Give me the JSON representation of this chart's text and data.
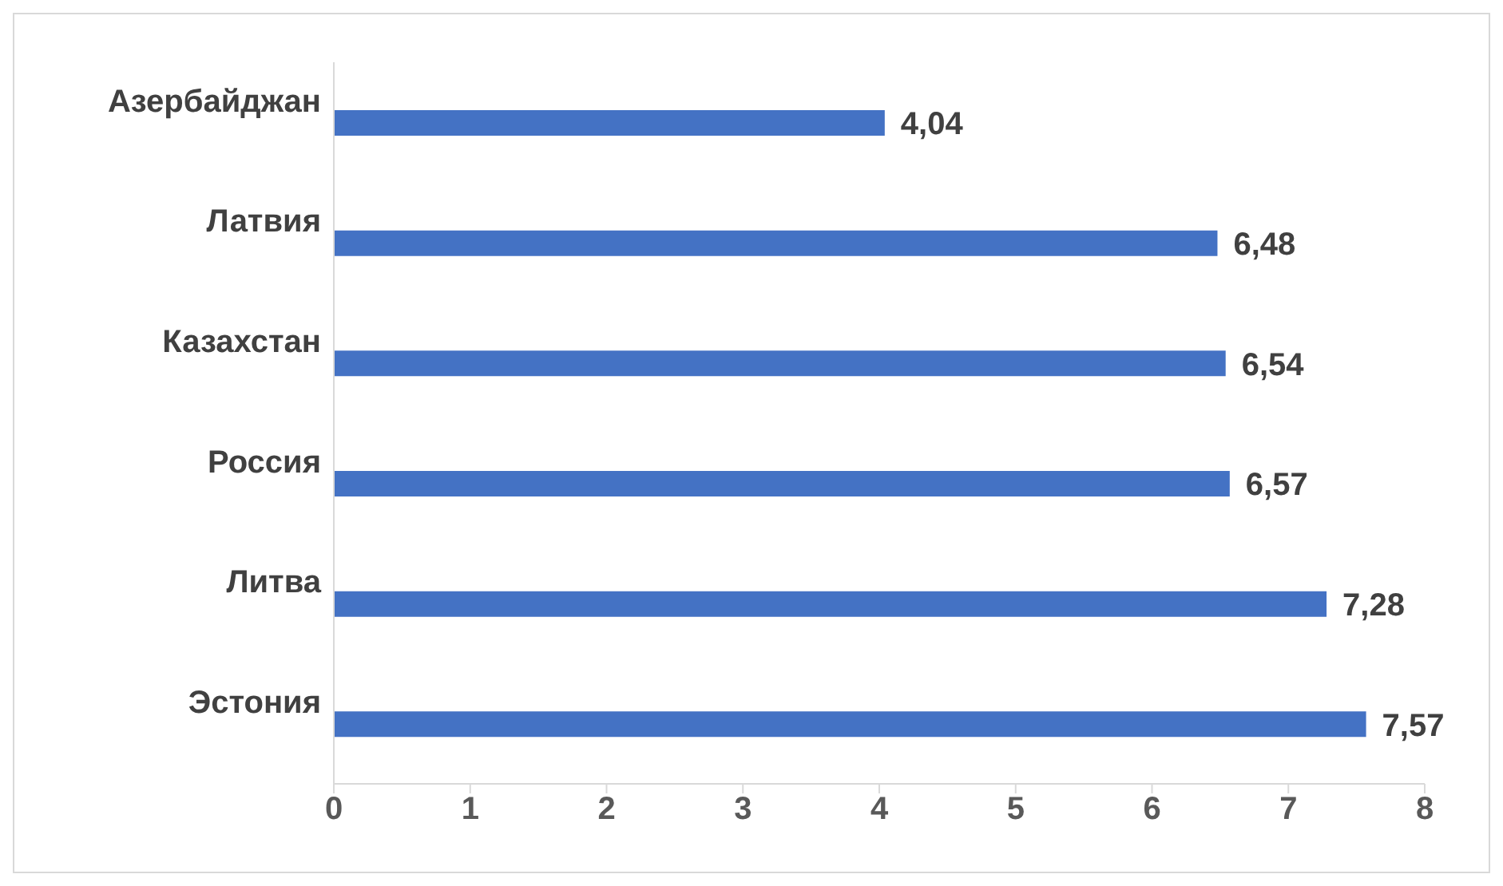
{
  "chart_data": {
    "type": "bar",
    "orientation": "horizontal",
    "categories": [
      "Азербайджан",
      "Латвия",
      "Казахстан",
      "Россия",
      "Литва",
      "Эстония"
    ],
    "values": [
      4.04,
      6.48,
      6.54,
      6.57,
      7.28,
      7.57
    ],
    "value_labels": [
      "4,04",
      "6,48",
      "6,54",
      "6,57",
      "7,28",
      "7,57"
    ],
    "color": "#4472c4",
    "xlim": [
      0,
      8
    ],
    "xticks": [
      0,
      1,
      2,
      3,
      4,
      5,
      6,
      7,
      8
    ],
    "grid": false
  }
}
